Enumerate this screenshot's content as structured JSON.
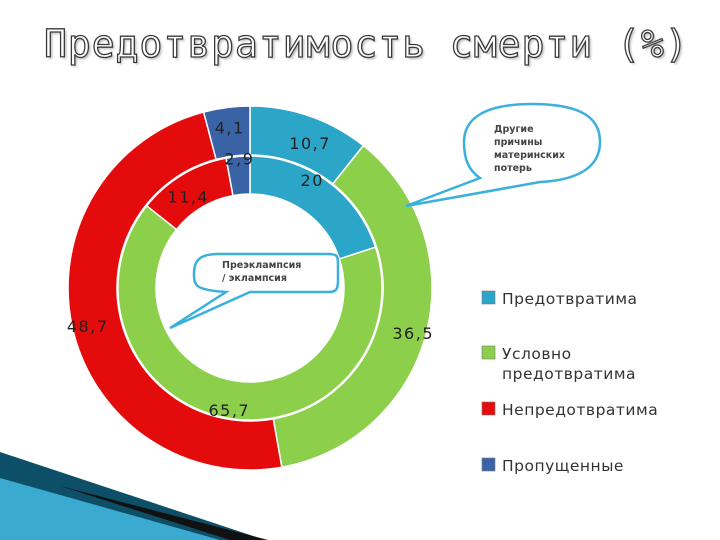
{
  "slide": {
    "title": "Предотвратимость смерти (%)"
  },
  "colors": {
    "preventable": "#2ba5c8",
    "conditional": "#8ccf4a",
    "unpreventable": "#e30b0b",
    "missed": "#3a63a6"
  },
  "chart_data": {
    "type": "doughnut",
    "title": "Предотвратимость смерти (%)",
    "legend_position": "right",
    "legend": [
      {
        "key": "preventable",
        "label": "Предотвратима"
      },
      {
        "key": "conditional",
        "label": "Условно предотвратима"
      },
      {
        "key": "unpreventable",
        "label": "Непредотвратима"
      },
      {
        "key": "missed",
        "label": "Пропущенные"
      }
    ],
    "rings": [
      {
        "ring": "outer",
        "callout": "Другие причины материнских потерь",
        "segments": [
          {
            "key": "preventable",
            "value": 10.7,
            "label": "10,7"
          },
          {
            "key": "conditional",
            "value": 36.5,
            "label": "36,5"
          },
          {
            "key": "unpreventable",
            "value": 48.7,
            "label": "48,7"
          },
          {
            "key": "missed",
            "value": 4.1,
            "label": "4,1"
          }
        ]
      },
      {
        "ring": "inner",
        "callout": "Преэклампсия / эклампсия",
        "segments": [
          {
            "key": "preventable",
            "value": 20,
            "label": "20"
          },
          {
            "key": "conditional",
            "value": 65.7,
            "label": "65,7"
          },
          {
            "key": "unpreventable",
            "value": 11.4,
            "label": "11,4"
          },
          {
            "key": "missed",
            "value": 2.9,
            "label": "2,9"
          }
        ]
      }
    ]
  }
}
